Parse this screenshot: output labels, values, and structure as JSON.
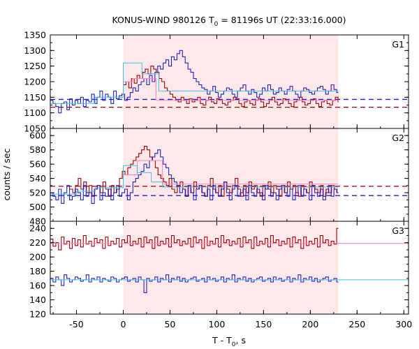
{
  "chart_data": {
    "type": "line",
    "title": {
      "main": "KONUS-WIND 980126 T",
      "sub": "0",
      "rest": " = 81196s UT (22:33:16.000)"
    },
    "xlabel": {
      "main": "T - T",
      "sub": "0",
      "rest": ", s"
    },
    "ylabel": "counts / sec",
    "xlim": [
      -78,
      305
    ],
    "x_ticks": [
      -50,
      0,
      50,
      100,
      150,
      200,
      250,
      300
    ],
    "highlight_interval": [
      0,
      230
    ],
    "highlight_color": "#ffe8ea",
    "colors": {
      "red": "#a00000",
      "blue": "#2020c0",
      "pink": "#ff80c0",
      "cyan": "#40c0e0"
    },
    "panels": [
      {
        "label": "G1",
        "ylim": [
          1050,
          1350
        ],
        "y_ticks": [
          1050,
          1100,
          1150,
          1200,
          1250,
          1300,
          1350
        ],
        "bin_width": 2.944,
        "blue_start": -78,
        "blue": [
          1140,
          1130,
          1120,
          1100,
          1130,
          1135,
          1110,
          1145,
          1125,
          1140,
          1130,
          1150,
          1120,
          1140,
          1135,
          1160,
          1130,
          1150,
          1170,
          1140,
          1160,
          1150,
          1130,
          1170,
          1145,
          1155,
          1160,
          1140,
          1150,
          1165,
          1180,
          1170,
          1190,
          1200,
          1210,
          1190,
          1220,
          1200,
          1230,
          1250,
          1240,
          1260,
          1270,
          1250,
          1280,
          1270,
          1290,
          1300,
          1280,
          1260,
          1240,
          1230,
          1210,
          1200,
          1190,
          1180,
          1175,
          1160,
          1170,
          1185,
          1165,
          1150,
          1160,
          1170,
          1180,
          1175,
          1160,
          1150,
          1170,
          1180,
          1190,
          1170,
          1160,
          1175,
          1165,
          1150,
          1160,
          1180,
          1170,
          1190,
          1175,
          1160,
          1165,
          1180,
          1170,
          1160,
          1175,
          1185,
          1170,
          1160,
          1150,
          1170,
          1180,
          1175,
          1165,
          1160,
          1170,
          1180,
          1185,
          1175,
          1160,
          1170,
          1190,
          1175,
          1165,
          1160,
          1170,
          1180,
          1175,
          1190,
          1170,
          1160,
          1175,
          1185,
          1170,
          1180,
          1165,
          1160,
          1150,
          1165,
          1180,
          1170,
          1160,
          1175,
          1150,
          1165,
          1170,
          1160,
          1150,
          1140,
          1155,
          1160,
          1170,
          1165,
          1150
        ],
        "red_start": 0,
        "red": [
          1190,
          1200,
          1180,
          1210,
          1195,
          1220,
          1210,
          1230,
          1240,
          1225,
          1250,
          1240,
          1230,
          1210,
          1200,
          1180,
          1170,
          1160,
          1150,
          1140,
          1135,
          1150,
          1140,
          1130,
          1145,
          1135,
          1140,
          1150,
          1130,
          1125,
          1140,
          1150,
          1135,
          1130,
          1145,
          1140,
          1130,
          1125,
          1135,
          1140,
          1150,
          1145,
          1130,
          1120,
          1135,
          1140,
          1130,
          1125,
          1140,
          1145,
          1135,
          1120,
          1130,
          1140,
          1150,
          1135,
          1125,
          1130,
          1145,
          1140,
          1130,
          1120,
          1135,
          1140,
          1150,
          1135,
          1125,
          1130,
          1140,
          1145,
          1130,
          1120,
          1135,
          1140,
          1130,
          1125,
          1140,
          1150,
          1135,
          1130
        ],
        "blue_steps": [
          [
            -78,
            -30,
            1130
          ],
          [
            -30,
            0,
            1150
          ],
          [
            0,
            20,
            1260
          ],
          [
            20,
            38,
            1225
          ],
          [
            38,
            230,
            1170
          ]
        ],
        "red_steps": [
          [
            0,
            10,
            1200
          ],
          [
            10,
            35,
            1210
          ],
          [
            35,
            230,
            1140
          ]
        ],
        "blue_bg": 1143,
        "red_bg": 1118
      },
      {
        "label": "G2",
        "ylim": [
          480,
          610
        ],
        "y_ticks": [
          480,
          500,
          520,
          540,
          560,
          580,
          600
        ],
        "bin_width": 2.944,
        "blue_start": -78,
        "blue": [
          520,
          515,
          510,
          525,
          505,
          520,
          530,
          510,
          515,
          525,
          520,
          510,
          530,
          515,
          520,
          505,
          525,
          530,
          510,
          520,
          515,
          525,
          510,
          520,
          530,
          515,
          520,
          525,
          510,
          520,
          535,
          540,
          545,
          550,
          560,
          555,
          565,
          570,
          575,
          580,
          570,
          560,
          555,
          545,
          540,
          535,
          530,
          520,
          525,
          515,
          530,
          520,
          510,
          525,
          530,
          520,
          515,
          525,
          510,
          530,
          520,
          515,
          525,
          535,
          520,
          510,
          525,
          530,
          515,
          520,
          525,
          510,
          530,
          520,
          515,
          525,
          520,
          510,
          530,
          525,
          515,
          520,
          510,
          525,
          530,
          520,
          515,
          525,
          510,
          520,
          530,
          515,
          525,
          520,
          510,
          530,
          520,
          515,
          525,
          510,
          520,
          530,
          515,
          525,
          520,
          510,
          525,
          515,
          530,
          520,
          510,
          525,
          520,
          515,
          530,
          510,
          520,
          525,
          515,
          520,
          510,
          525,
          530,
          515,
          520,
          510,
          525,
          515,
          520,
          510,
          505
        ],
        "red_start": -57,
        "red": [
          525,
          520,
          530,
          540,
          525,
          535,
          520,
          530,
          515,
          525,
          530,
          520,
          535,
          525,
          515,
          530,
          520,
          525,
          540,
          550,
          545,
          555,
          560,
          565,
          570,
          575,
          580,
          585,
          580,
          570,
          565,
          555,
          545,
          540,
          535,
          530,
          540,
          525,
          520,
          530,
          535,
          525,
          515,
          530,
          520,
          535,
          525,
          530,
          520,
          515,
          530,
          540,
          525,
          520,
          530,
          515,
          535,
          525,
          520,
          530,
          540,
          525,
          515,
          530,
          520,
          535,
          525,
          530,
          520,
          515,
          530,
          525,
          535,
          520,
          530,
          525,
          515,
          530,
          520,
          535,
          525,
          530,
          520,
          515,
          530,
          525,
          520,
          535,
          530,
          525,
          520,
          530,
          515,
          525,
          520,
          530,
          525,
          520,
          530,
          525
        ],
        "blue_steps": [
          [
            -78,
            -50,
            518
          ],
          [
            -50,
            -30,
            522
          ],
          [
            -30,
            0,
            527
          ],
          [
            0,
            15,
            558
          ],
          [
            15,
            30,
            548
          ],
          [
            30,
            42,
            535
          ],
          [
            42,
            230,
            528
          ]
        ],
        "red_steps": [
          [
            0,
            15,
            545
          ],
          [
            15,
            42,
            565
          ],
          [
            42,
            230,
            532
          ]
        ],
        "blue_bg": 516,
        "red_bg": 529
      },
      {
        "label": "G3",
        "ylim": [
          120,
          250
        ],
        "y_ticks": [
          120,
          140,
          160,
          180,
          200,
          220,
          240
        ],
        "bin_width": 2.944,
        "blue_start": -78,
        "blue": [
          170,
          165,
          172,
          168,
          160,
          175,
          170,
          165,
          168,
          172,
          170,
          166,
          168,
          175,
          165,
          170,
          168,
          172,
          165,
          170,
          168,
          166,
          172,
          170,
          165,
          168,
          170,
          172,
          166,
          168,
          170,
          165,
          172,
          168,
          150,
          170,
          166,
          168,
          172,
          165,
          170,
          168,
          175,
          165,
          170,
          168,
          172,
          166,
          170,
          165,
          168,
          170,
          172,
          166,
          168,
          170,
          165,
          172,
          168,
          170,
          166,
          168,
          172,
          165,
          170,
          168,
          175,
          165,
          170,
          168,
          172,
          166,
          170,
          165,
          168,
          170,
          172,
          166,
          168,
          170,
          165,
          172,
          168,
          170,
          166,
          168,
          172,
          165,
          170,
          168,
          175,
          165,
          170,
          168,
          172,
          166,
          170,
          165,
          168,
          170,
          172,
          166,
          168,
          170,
          165,
          172,
          168,
          170,
          166,
          168,
          172,
          165,
          170,
          168,
          175,
          165,
          170,
          168,
          172,
          166,
          170,
          165,
          168,
          170,
          172,
          166,
          168,
          170,
          165,
          172,
          168,
          175
        ],
        "red_start": -78,
        "red": [
          225,
          215,
          220,
          210,
          228,
          218,
          222,
          212,
          226,
          216,
          224,
          214,
          230,
          218,
          222,
          215,
          226,
          220,
          224,
          212,
          228,
          216,
          222,
          218,
          226,
          214,
          224,
          220,
          230,
          216,
          222,
          218,
          226,
          214,
          228,
          220,
          224,
          212,
          228,
          216,
          222,
          218,
          226,
          214,
          230,
          220,
          224,
          216,
          222,
          218,
          226,
          214,
          228,
          220,
          224,
          212,
          228,
          216,
          222,
          218,
          226,
          214,
          230,
          220,
          224,
          216,
          222,
          218,
          226,
          214,
          228,
          220,
          224,
          212,
          228,
          216,
          222,
          218,
          226,
          214,
          230,
          220,
          224,
          216,
          222,
          218,
          226,
          214,
          228,
          220,
          224,
          212,
          228,
          216,
          222,
          218,
          226,
          214,
          230,
          220,
          224,
          216,
          222,
          218,
          240,
          214,
          228,
          220,
          224,
          212,
          228,
          216,
          222,
          218,
          226,
          214,
          230,
          220,
          224,
          216,
          222,
          218,
          226,
          214,
          228,
          220,
          224,
          212,
          228,
          216,
          226,
          230
        ],
        "blue_steps": [
          [
            -78,
            230,
            168
          ],
          [
            230,
            305,
            168
          ]
        ],
        "red_steps": [
          [
            -78,
            230,
            219
          ],
          [
            230,
            305,
            219
          ]
        ],
        "blue_bg": null,
        "red_bg": null
      }
    ]
  }
}
